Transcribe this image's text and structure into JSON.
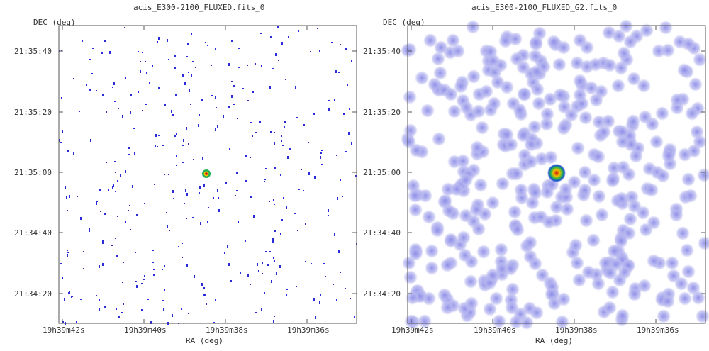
{
  "panels": [
    {
      "title": "acis_E300-2100_FLUXED.fits_0",
      "ylabel": "DEC (deg)",
      "xlabel": "RA (deg)",
      "yticks": [
        "21:35:40",
        "21:35:20",
        "21:35:00",
        "21:34:40",
        "21:34:20"
      ],
      "xticks": [
        "19h39m42s",
        "19h39m40s",
        "19h39m38s",
        "19h39m36s"
      ],
      "style": "sparse"
    },
    {
      "title": "acis_E300-2100_FLUXED_G2.fits_0",
      "ylabel": "DEC (deg)",
      "xlabel": "RA (deg)",
      "yticks": [
        "21:35:40",
        "21:35:20",
        "21:35:00",
        "21:34:40",
        "21:34:20"
      ],
      "xticks": [
        "19h39m42s",
        "19h39m40s",
        "19h39m38s",
        "19h39m36s"
      ],
      "style": "smoothed"
    }
  ],
  "colors": {
    "pixel": "#2b2bd8",
    "blob": "#b8b8f0",
    "source_core": "#cc1010",
    "source_mid": "#f0c000",
    "source_outer": "#20b050",
    "axis": "#555555"
  }
}
